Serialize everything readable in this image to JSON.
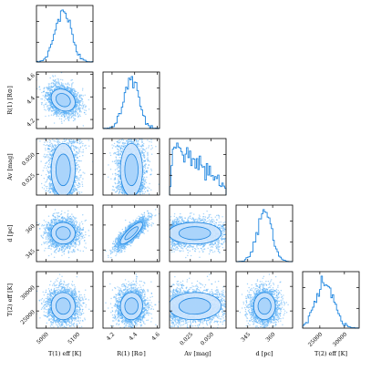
{
  "chart_data": {
    "type": "corner",
    "color": "#1f86e0",
    "point_color": "#5aaef5",
    "contour_fill_colors": [
      "#a9d3fb",
      "#cfe6fd"
    ],
    "contour_line_color": "#1f86e0",
    "parameters": [
      {
        "key": "T1",
        "label": "T(1) eff [K]",
        "min": 4970,
        "max": 5150,
        "mean": 5055,
        "sd": 25,
        "ticks": [
          {
            "v": 5000,
            "t": "5000"
          },
          {
            "v": 5100,
            "t": "5100"
          }
        ]
      },
      {
        "key": "R1",
        "label": "R(1) [R⊙]",
        "min": 4.12,
        "max": 4.62,
        "mean": 4.37,
        "sd": 0.065,
        "ticks": [
          {
            "v": 4.2,
            "t": "4.2"
          },
          {
            "v": 4.4,
            "t": "4.4"
          },
          {
            "v": 4.6,
            "t": "4.6"
          }
        ]
      },
      {
        "key": "Av",
        "label": "Av [mag]",
        "min": 0.0,
        "max": 0.068,
        "dist": "halfnormal",
        "sd": 0.035,
        "ticks": [
          {
            "v": 0.025,
            "t": "0.025"
          },
          {
            "v": 0.05,
            "t": "0.050"
          }
        ]
      },
      {
        "key": "d",
        "label": "d [pc]",
        "min": 338,
        "max": 372,
        "mean": 355,
        "sd": 4.3,
        "ticks": [
          {
            "v": 345,
            "t": "345"
          },
          {
            "v": 360,
            "t": "360"
          }
        ]
      },
      {
        "key": "T2",
        "label": "T(2) eff [K]",
        "min": 21500,
        "max": 33000,
        "mean": 26000,
        "sd": 1800,
        "ticks": [
          {
            "v": 25000,
            "t": "25000"
          },
          {
            "v": 30000,
            "t": "30000"
          }
        ]
      }
    ],
    "correlations": [
      {
        "a": "R1",
        "b": "d",
        "r": 0.85
      },
      {
        "a": "T1",
        "b": "Av",
        "r": 0.55
      },
      {
        "a": "R1",
        "b": "Av",
        "r": -0.3
      },
      {
        "a": "T1",
        "b": "R1",
        "r": -0.2
      }
    ]
  }
}
